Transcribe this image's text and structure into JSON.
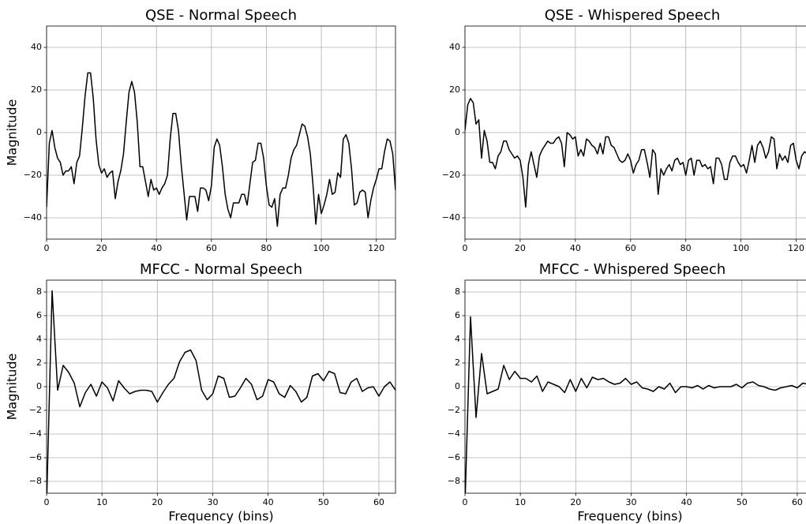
{
  "chart_data": [
    {
      "type": "line",
      "title": "QSE - Normal Speech",
      "ylabel": "Magnitude",
      "color": "#000000",
      "grid": true,
      "xlim": [
        0,
        127
      ],
      "ylim": [
        -50,
        50
      ],
      "xticks": [
        0,
        20,
        40,
        60,
        80,
        100,
        120
      ],
      "yticks": [
        {
          "value": -40,
          "label": "−40"
        },
        {
          "value": -20,
          "label": "−20"
        },
        0,
        20,
        40
      ],
      "x": [
        0,
        1,
        2,
        3,
        4,
        5,
        6,
        7,
        8,
        9,
        10,
        11,
        12,
        13,
        14,
        15,
        16,
        17,
        18,
        19,
        20,
        21,
        22,
        23,
        24,
        25,
        26,
        27,
        28,
        29,
        30,
        31,
        32,
        33,
        34,
        35,
        36,
        37,
        38,
        39,
        40,
        41,
        42,
        43,
        44,
        45,
        46,
        47,
        48,
        49,
        50,
        51,
        52,
        53,
        54,
        55,
        56,
        57,
        58,
        59,
        60,
        61,
        62,
        63,
        64,
        65,
        66,
        67,
        68,
        69,
        70,
        71,
        72,
        73,
        74,
        75,
        76,
        77,
        78,
        79,
        80,
        81,
        82,
        83,
        84,
        85,
        86,
        87,
        88,
        89,
        90,
        91,
        92,
        93,
        94,
        95,
        96,
        97,
        98,
        99,
        100,
        101,
        102,
        103,
        104,
        105,
        106,
        107,
        108,
        109,
        110,
        111,
        112,
        113,
        114,
        115,
        116,
        117,
        118,
        119,
        120,
        121,
        122,
        123,
        124,
        125,
        126,
        127
      ],
      "values": [
        -35,
        -5,
        1,
        -7,
        -12,
        -14,
        -20,
        -18,
        -18,
        -16,
        -24,
        -14,
        -11,
        2,
        17,
        28,
        28,
        16,
        -3,
        -15,
        -19,
        -17,
        -21,
        -19,
        -18,
        -31,
        -23,
        -18,
        -10,
        5,
        19,
        24,
        19,
        5,
        -16,
        -16,
        -23,
        -30,
        -22,
        -27,
        -26,
        -29,
        -26,
        -24,
        -20,
        -3,
        9,
        9,
        1,
        -15,
        -28,
        -41,
        -30,
        -30,
        -30,
        -37,
        -26,
        -26,
        -27,
        -32,
        -25,
        -7,
        -3,
        -6,
        -16,
        -29,
        -36,
        -40,
        -33,
        -33,
        -33,
        -29,
        -29,
        -34,
        -24,
        -14,
        -13,
        -5,
        -5,
        -12,
        -25,
        -34,
        -35,
        -31,
        -44,
        -29,
        -26,
        -26,
        -20,
        -12,
        -8,
        -6,
        -1,
        4,
        3,
        -2,
        -10,
        -25,
        -43,
        -29,
        -38,
        -34,
        -29,
        -22,
        -29,
        -28,
        -19,
        -21,
        -3,
        -1,
        -5,
        -17,
        -34,
        -33,
        -28,
        -27,
        -28,
        -40,
        -32,
        -26,
        -22,
        -17,
        -17,
        -9,
        -3,
        -4,
        -10,
        -27
      ]
    },
    {
      "type": "line",
      "title": "QSE - Whispered Speech",
      "color": "#000000",
      "grid": true,
      "xlim": [
        0,
        127
      ],
      "ylim": [
        -50,
        50
      ],
      "xticks": [
        0,
        20,
        40,
        60,
        80,
        100,
        120
      ],
      "yticks": [
        {
          "value": -40,
          "label": "−40"
        },
        {
          "value": -20,
          "label": "−20"
        },
        0,
        20,
        40
      ],
      "x": [
        0,
        1,
        2,
        3,
        4,
        5,
        6,
        7,
        8,
        9,
        10,
        11,
        12,
        13,
        14,
        15,
        16,
        17,
        18,
        19,
        20,
        21,
        22,
        23,
        24,
        25,
        26,
        27,
        28,
        29,
        30,
        31,
        32,
        33,
        34,
        35,
        36,
        37,
        38,
        39,
        40,
        41,
        42,
        43,
        44,
        45,
        46,
        47,
        48,
        49,
        50,
        51,
        52,
        53,
        54,
        55,
        56,
        57,
        58,
        59,
        60,
        61,
        62,
        63,
        64,
        65,
        66,
        67,
        68,
        69,
        70,
        71,
        72,
        73,
        74,
        75,
        76,
        77,
        78,
        79,
        80,
        81,
        82,
        83,
        84,
        85,
        86,
        87,
        88,
        89,
        90,
        91,
        92,
        93,
        94,
        95,
        96,
        97,
        98,
        99,
        100,
        101,
        102,
        103,
        104,
        105,
        106,
        107,
        108,
        109,
        110,
        111,
        112,
        113,
        114,
        115,
        116,
        117,
        118,
        119,
        120,
        121,
        122,
        123,
        124,
        125,
        126,
        127
      ],
      "values": [
        1,
        13,
        16,
        14,
        4,
        6,
        -12,
        1,
        -4,
        -14,
        -14,
        -17,
        -11,
        -9,
        -4,
        -4,
        -8,
        -10,
        -12,
        -11,
        -13,
        -21,
        -35,
        -15,
        -9,
        -15,
        -21,
        -11,
        -8,
        -6,
        -4,
        -5,
        -5,
        -3,
        -2,
        -5,
        -16,
        0,
        -1,
        -3,
        -2,
        -11,
        -8,
        -11,
        -3,
        -4,
        -6,
        -7,
        -10,
        -5,
        -10,
        -2,
        -2,
        -6,
        -7,
        -10,
        -13,
        -14,
        -13,
        -10,
        -13,
        -19,
        -15,
        -13,
        -8,
        -8,
        -14,
        -21,
        -8,
        -10,
        -29,
        -17,
        -20,
        -17,
        -15,
        -18,
        -13,
        -12,
        -15,
        -14,
        -20,
        -13,
        -12,
        -20,
        -13,
        -13,
        -16,
        -15,
        -17,
        -16,
        -24,
        -12,
        -12,
        -15,
        -22,
        -22,
        -14,
        -11,
        -11,
        -14,
        -16,
        -15,
        -19,
        -13,
        -6,
        -14,
        -6,
        -4,
        -7,
        -12,
        -9,
        -2,
        -3,
        -17,
        -10,
        -13,
        -11,
        -14,
        -6,
        -5,
        -13,
        -17,
        -11,
        -9,
        -10,
        -10,
        -11,
        -9
      ]
    },
    {
      "type": "line",
      "title": "MFCC - Normal Speech",
      "ylabel": "Magnitude",
      "xlabel": "Frequency (bins)",
      "color": "#000000",
      "grid": true,
      "xlim": [
        0,
        63
      ],
      "ylim": [
        -9,
        9
      ],
      "xticks": [
        0,
        10,
        20,
        30,
        40,
        50,
        60
      ],
      "yticks": [
        {
          "value": -8,
          "label": "−8"
        },
        {
          "value": -6,
          "label": "−6"
        },
        {
          "value": -4,
          "label": "−4"
        },
        {
          "value": -2,
          "label": "−2"
        },
        0,
        2,
        4,
        6,
        8
      ],
      "x": [
        0,
        1,
        2,
        3,
        4,
        5,
        6,
        7,
        8,
        9,
        10,
        11,
        12,
        13,
        14,
        15,
        16,
        17,
        18,
        19,
        20,
        21,
        22,
        23,
        24,
        25,
        26,
        27,
        28,
        29,
        30,
        31,
        32,
        33,
        34,
        35,
        36,
        37,
        38,
        39,
        40,
        41,
        42,
        43,
        44,
        45,
        46,
        47,
        48,
        49,
        50,
        51,
        52,
        53,
        54,
        55,
        56,
        57,
        58,
        59,
        60,
        61,
        62,
        63
      ],
      "values": [
        -10,
        8.1,
        -0.3,
        1.8,
        1.2,
        0.3,
        -1.7,
        -0.5,
        0.2,
        -0.8,
        0.4,
        -0.1,
        -1.2,
        0.5,
        -0.1,
        -0.6,
        -0.4,
        -0.3,
        -0.3,
        -0.4,
        -1.3,
        -0.5,
        0.2,
        0.7,
        2.1,
        2.9,
        3.1,
        2.2,
        -0.3,
        -1.1,
        -0.6,
        0.9,
        0.7,
        -0.9,
        -0.8,
        -0.1,
        0.7,
        0.2,
        -1.1,
        -0.8,
        0.6,
        0.4,
        -0.6,
        -0.9,
        0.1,
        -0.4,
        -1.3,
        -0.9,
        0.9,
        1.1,
        0.5,
        1.3,
        1.1,
        -0.5,
        -0.6,
        0.4,
        0.7,
        -0.4,
        -0.1,
        0,
        -0.8,
        0,
        0.4,
        -0.3
      ]
    },
    {
      "type": "line",
      "title": "MFCC - Whispered Speech",
      "xlabel": "Frequency (bins)",
      "color": "#000000",
      "grid": true,
      "xlim": [
        0,
        63
      ],
      "ylim": [
        -9,
        9
      ],
      "xticks": [
        0,
        10,
        20,
        30,
        40,
        50,
        60
      ],
      "yticks": [
        {
          "value": -8,
          "label": "−8"
        },
        {
          "value": -6,
          "label": "−6"
        },
        {
          "value": -4,
          "label": "−4"
        },
        {
          "value": -2,
          "label": "−2"
        },
        0,
        2,
        4,
        6,
        8
      ],
      "x": [
        0,
        1,
        2,
        3,
        4,
        5,
        6,
        7,
        8,
        9,
        10,
        11,
        12,
        13,
        14,
        15,
        16,
        17,
        18,
        19,
        20,
        21,
        22,
        23,
        24,
        25,
        26,
        27,
        28,
        29,
        30,
        31,
        32,
        33,
        34,
        35,
        36,
        37,
        38,
        39,
        40,
        41,
        42,
        43,
        44,
        45,
        46,
        47,
        48,
        49,
        50,
        51,
        52,
        53,
        54,
        55,
        56,
        57,
        58,
        59,
        60,
        61,
        62,
        63
      ],
      "values": [
        -10,
        5.9,
        -2.6,
        2.8,
        -0.6,
        -0.4,
        -0.2,
        1.8,
        0.6,
        1.3,
        0.7,
        0.7,
        0.4,
        0.9,
        -0.4,
        0.4,
        0.2,
        0,
        -0.5,
        0.6,
        -0.4,
        0.7,
        -0.1,
        0.8,
        0.6,
        0.7,
        0.4,
        0.2,
        0.3,
        0.7,
        0.2,
        0.4,
        -0.1,
        -0.2,
        -0.4,
        0,
        -0.2,
        0.3,
        -0.5,
        0,
        0,
        -0.1,
        0.1,
        -0.2,
        0.1,
        -0.1,
        0,
        0,
        0,
        0.2,
        -0.1,
        0.3,
        0.4,
        0.1,
        0,
        -0.2,
        -0.3,
        -0.1,
        0,
        0.1,
        -0.1,
        0.3,
        0.2,
        0.2
      ]
    }
  ]
}
